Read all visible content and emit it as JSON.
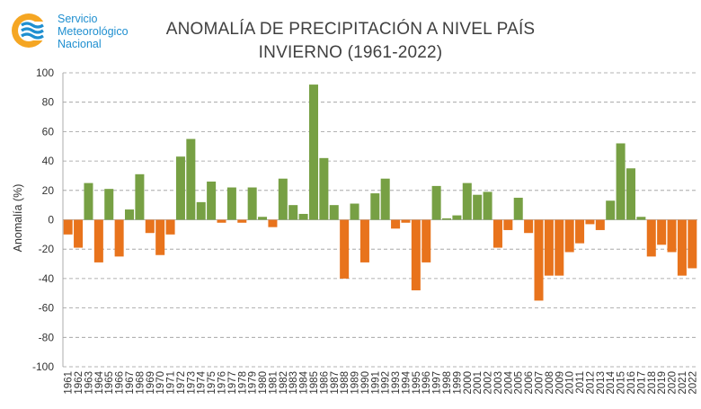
{
  "header": {
    "logo_lines": [
      "Servicio",
      "Meteorológico",
      "Nacional"
    ],
    "title_line1": "ANOMALÍA DE PRECIPITACIÓN A NIVEL PAÍS",
    "title_line2": "INVIERNO (1961-2022)"
  },
  "colors": {
    "positive": "#77a044",
    "negative": "#e8731c",
    "grid": "#9a9a9a",
    "text": "#404040",
    "logo_orange": "#f5a623",
    "logo_blue": "#1f8fd0"
  },
  "chart_data": {
    "type": "bar",
    "title": "ANOMALÍA DE PRECIPITACIÓN A NIVEL PAÍS INVIERNO (1961-2022)",
    "xlabel": "",
    "ylabel": "Anomalía (%)",
    "ylim": [
      -100,
      100
    ],
    "yticks": [
      100,
      80,
      60,
      40,
      20,
      0,
      -20,
      -40,
      -60,
      -80,
      -100
    ],
    "grid": true,
    "categories": [
      "1961",
      "1962",
      "1963",
      "1964",
      "1965",
      "1966",
      "1967",
      "1968",
      "1969",
      "1970",
      "1971",
      "1972",
      "1973",
      "1974",
      "1975",
      "1976",
      "1977",
      "1978",
      "1979",
      "1980",
      "1981",
      "1982",
      "1983",
      "1984",
      "1985",
      "1986",
      "1987",
      "1988",
      "1989",
      "1990",
      "1991",
      "1992",
      "1993",
      "1994",
      "1995",
      "1996",
      "1997",
      "1998",
      "1999",
      "2000",
      "2001",
      "2002",
      "2003",
      "2004",
      "2005",
      "2006",
      "2007",
      "2008",
      "2009",
      "2010",
      "2011",
      "2012",
      "2013",
      "2014",
      "2015",
      "2016",
      "2017",
      "2018",
      "2019",
      "2020",
      "2021",
      "2022"
    ],
    "values": [
      -10,
      -19,
      25,
      -29,
      21,
      -25,
      7,
      31,
      -9,
      -24,
      -10,
      43,
      55,
      12,
      26,
      -2,
      22,
      -2,
      22,
      2,
      -5,
      28,
      10,
      4,
      92,
      42,
      10,
      -40,
      11,
      -29,
      18,
      28,
      -6,
      -2,
      -48,
      -29,
      23,
      1,
      3,
      25,
      17,
      19,
      -19,
      -7,
      15,
      -9,
      -55,
      -38,
      -38,
      -22,
      -16,
      -3,
      -7,
      13,
      52,
      35,
      2,
      -25,
      -17,
      -22,
      -38,
      -33
    ]
  }
}
